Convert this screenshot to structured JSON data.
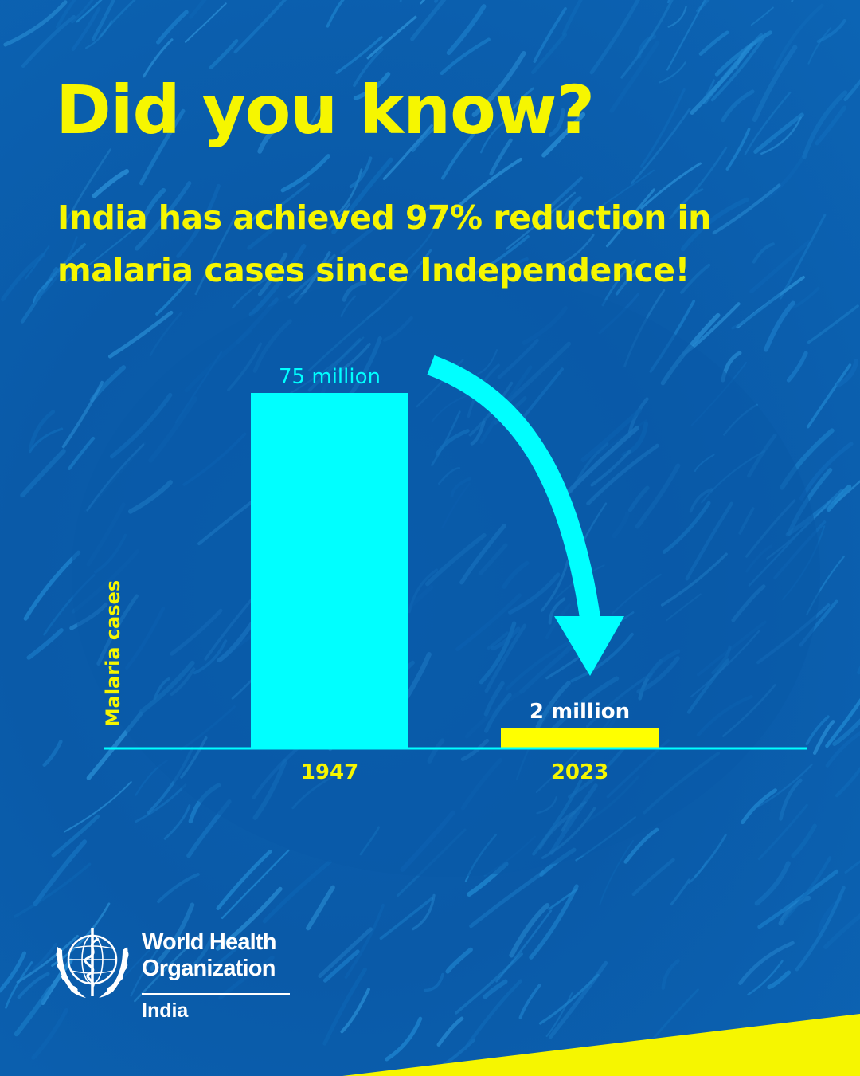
{
  "headline": "Did you know?",
  "subhead": {
    "line1": "India has achieved 97% reduction in",
    "line2": "malaria cases since Independence!"
  },
  "chart_data": {
    "type": "bar",
    "categories": [
      "1947",
      "2023"
    ],
    "values": [
      75,
      2
    ],
    "value_labels": [
      "75 million",
      "2 million"
    ],
    "unit": "million",
    "ylabel": "Malaria cases",
    "xlabel": "",
    "ylim": [
      0,
      75
    ],
    "grid": false,
    "bar_colors": [
      "#00ffff",
      "#ffff00"
    ]
  },
  "logo": {
    "org_name": "World Health Organization",
    "country": "India"
  },
  "colors": {
    "background": "#0a5aa8",
    "headline": "#f6f600",
    "accent_cyan": "#00ffff",
    "accent_yellow": "#ffff00",
    "logo": "#ffffff"
  }
}
